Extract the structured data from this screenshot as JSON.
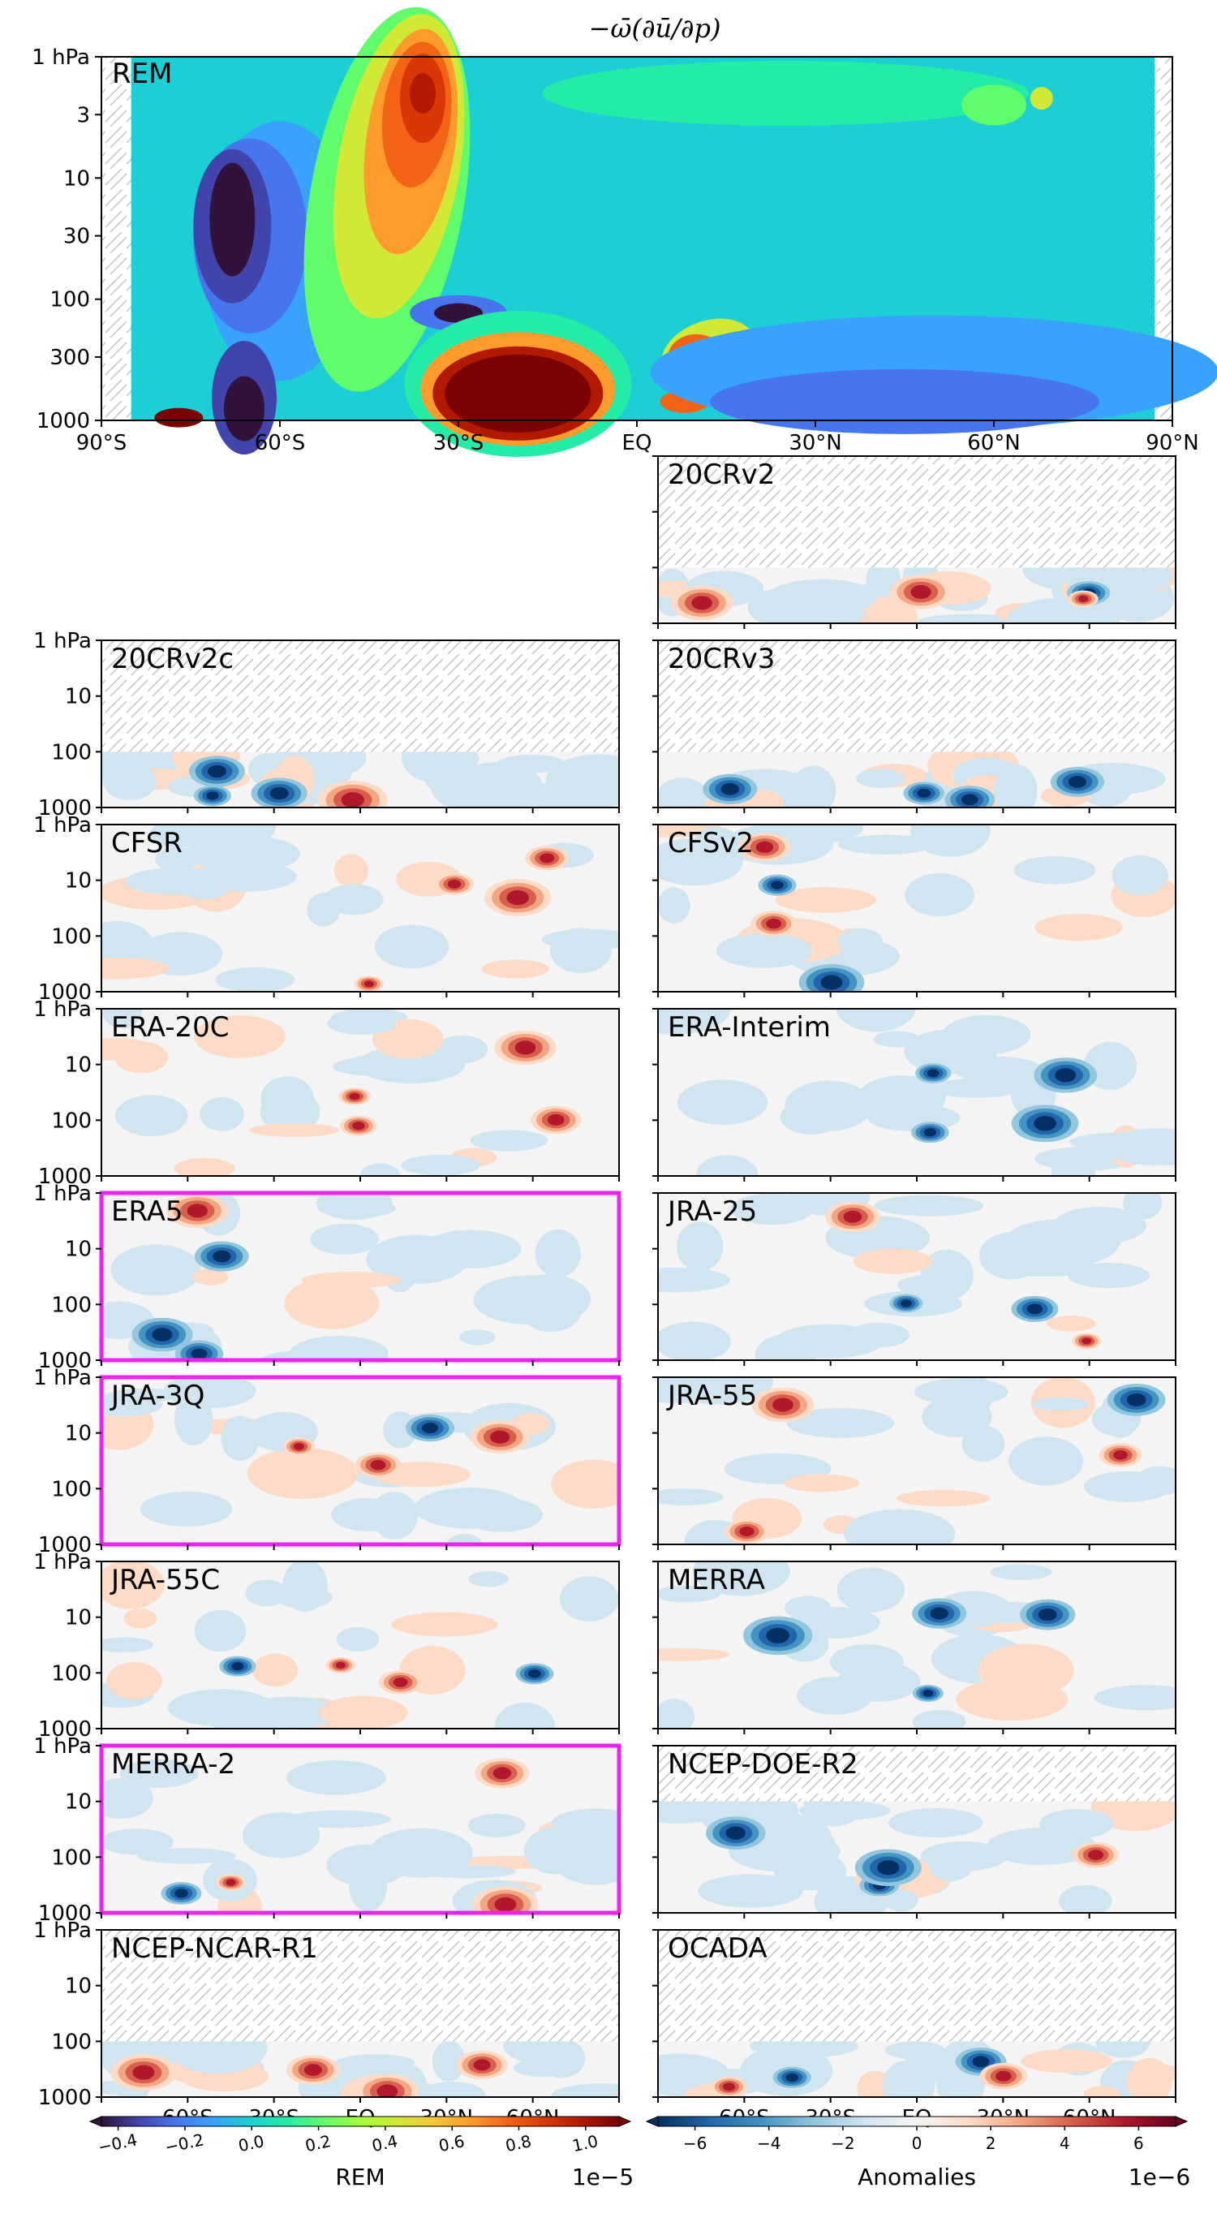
{
  "chart_data": {
    "type": "contour",
    "title": "−ω̄(∂ū/∂p)",
    "x_ticklabels": [
      "90°S",
      "60°S",
      "30°S",
      "EQ",
      "30°N",
      "60°N",
      "90°N"
    ],
    "x_ticklabels_bottom": [
      "60°S",
      "30°S",
      "EQ",
      "30°N",
      "60°N"
    ],
    "x_range": [
      -90,
      90
    ],
    "main_y_ticklabels": [
      "1 hPa",
      "3",
      "10",
      "30",
      "100",
      "300",
      "1000"
    ],
    "small_y_ticklabels": [
      "1 hPa",
      "10",
      "100",
      "1000"
    ],
    "y_range_hPa": [
      1000,
      1
    ],
    "y_scale": "log",
    "main_panel": {
      "tag": "REM"
    },
    "panels": [
      {
        "name": "20CRv2",
        "column": 1,
        "row": 0,
        "highlight": false,
        "top_hPa": 100
      },
      {
        "name": "20CRv2c",
        "column": 0,
        "row": 1,
        "highlight": false,
        "top_hPa": 100
      },
      {
        "name": "20CRv3",
        "column": 1,
        "row": 1,
        "highlight": false,
        "top_hPa": 100
      },
      {
        "name": "CFSR",
        "column": 0,
        "row": 2,
        "highlight": false,
        "top_hPa": 1
      },
      {
        "name": "CFSv2",
        "column": 1,
        "row": 2,
        "highlight": false,
        "top_hPa": 1
      },
      {
        "name": "ERA-20C",
        "column": 0,
        "row": 3,
        "highlight": false,
        "top_hPa": 1
      },
      {
        "name": "ERA-Interim",
        "column": 1,
        "row": 3,
        "highlight": false,
        "top_hPa": 1
      },
      {
        "name": "ERA5",
        "column": 0,
        "row": 4,
        "highlight": true,
        "top_hPa": 1
      },
      {
        "name": "JRA-25",
        "column": 1,
        "row": 4,
        "highlight": false,
        "top_hPa": 1
      },
      {
        "name": "JRA-3Q",
        "column": 0,
        "row": 5,
        "highlight": true,
        "top_hPa": 1
      },
      {
        "name": "JRA-55",
        "column": 1,
        "row": 5,
        "highlight": false,
        "top_hPa": 1
      },
      {
        "name": "JRA-55C",
        "column": 0,
        "row": 6,
        "highlight": false,
        "top_hPa": 1
      },
      {
        "name": "MERRA",
        "column": 1,
        "row": 6,
        "highlight": false,
        "top_hPa": 1
      },
      {
        "name": "MERRA-2",
        "column": 0,
        "row": 7,
        "highlight": true,
        "top_hPa": 1
      },
      {
        "name": "NCEP-DOE-R2",
        "column": 1,
        "row": 7,
        "highlight": false,
        "top_hPa": 10
      },
      {
        "name": "NCEP-NCAR-R1",
        "column": 0,
        "row": 8,
        "highlight": false,
        "top_hPa": 100
      },
      {
        "name": "OCADA",
        "column": 1,
        "row": 8,
        "highlight": false,
        "top_hPa": 100
      }
    ],
    "colorbar_rem": {
      "label": "REM",
      "scale_text": "1e−5",
      "ticks": [
        "−0.4",
        "−0.2",
        "0.0",
        "0.2",
        "0.4",
        "0.6",
        "0.8",
        "1.0"
      ],
      "range": [
        -0.45,
        1.1
      ]
    },
    "colorbar_anom": {
      "label": "Anomalies",
      "scale_text": "1e−6",
      "ticks": [
        "−6",
        "−4",
        "−2",
        "0",
        "2",
        "4",
        "6"
      ],
      "range": [
        -7,
        7
      ]
    },
    "colors": {
      "highlight": "#ee22ee",
      "hatch": "#c8c8c8",
      "rem_colormap": [
        "#30123b",
        "#4145ab",
        "#4675ed",
        "#39a2fc",
        "#1bcfd4",
        "#24eca6",
        "#61fc6c",
        "#a4fc3b",
        "#d1e834",
        "#f3c63a",
        "#fe9b2d",
        "#f36315",
        "#d93806",
        "#b11901",
        "#7a0402"
      ],
      "anom_colormap": [
        "#053061",
        "#2166ac",
        "#4393c3",
        "#92c5de",
        "#d1e5f0",
        "#f4f4f4",
        "#fddbc7",
        "#f4a582",
        "#d6604d",
        "#b2182b",
        "#67001f"
      ]
    }
  }
}
